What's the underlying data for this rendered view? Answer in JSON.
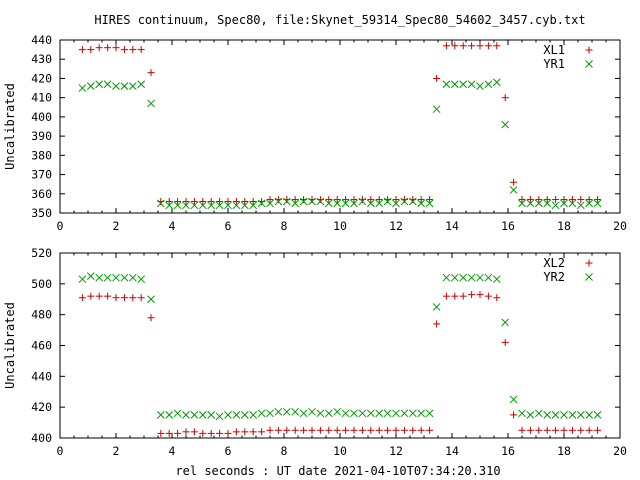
{
  "chart_data": [
    {
      "type": "scatter",
      "title": "HIRES continuum, Spec80, file:Skynet_59314_Spec80_54602_3457.cyb.txt",
      "xlabel": "",
      "ylabel": "Uncalibrated",
      "xlim": [
        0,
        20
      ],
      "ylim": [
        350,
        440
      ],
      "xticks": [
        "0",
        "2",
        "4",
        "6",
        "8",
        "10",
        "12",
        "14",
        "16",
        "18",
        "20"
      ],
      "yticks": [
        "350",
        "360",
        "370",
        "380",
        "390",
        "400",
        "410",
        "420",
        "430",
        "440"
      ],
      "grid": false,
      "legend": "top-right",
      "series": [
        {
          "name": "XL1",
          "marker": "plus",
          "color": "#cc0000",
          "points": [
            [
              0.8,
              435
            ],
            [
              1.1,
              435
            ],
            [
              1.4,
              436
            ],
            [
              1.7,
              436
            ],
            [
              2.0,
              436
            ],
            [
              2.3,
              435
            ],
            [
              2.6,
              435
            ],
            [
              2.9,
              435
            ],
            [
              3.25,
              423
            ],
            [
              3.6,
              356
            ],
            [
              3.9,
              356
            ],
            [
              4.2,
              356
            ],
            [
              4.5,
              356
            ],
            [
              4.8,
              356
            ],
            [
              5.1,
              356
            ],
            [
              5.4,
              356
            ],
            [
              5.7,
              356
            ],
            [
              6.0,
              356
            ],
            [
              6.3,
              356
            ],
            [
              6.6,
              356
            ],
            [
              6.9,
              356
            ],
            [
              7.2,
              356
            ],
            [
              7.5,
              357
            ],
            [
              7.8,
              357
            ],
            [
              8.1,
              357
            ],
            [
              8.4,
              357
            ],
            [
              8.7,
              357
            ],
            [
              9.0,
              357
            ],
            [
              9.3,
              357
            ],
            [
              9.6,
              357
            ],
            [
              9.9,
              357
            ],
            [
              10.2,
              357
            ],
            [
              10.5,
              357
            ],
            [
              10.8,
              357
            ],
            [
              11.1,
              357
            ],
            [
              11.4,
              357
            ],
            [
              11.7,
              357
            ],
            [
              12.0,
              357
            ],
            [
              12.3,
              357
            ],
            [
              12.6,
              357
            ],
            [
              12.9,
              357
            ],
            [
              13.2,
              357
            ],
            [
              13.45,
              420
            ],
            [
              13.8,
              437
            ],
            [
              14.1,
              437
            ],
            [
              14.4,
              437
            ],
            [
              14.7,
              437
            ],
            [
              15.0,
              437
            ],
            [
              15.3,
              437
            ],
            [
              15.6,
              437
            ],
            [
              15.9,
              410
            ],
            [
              16.2,
              366
            ],
            [
              16.5,
              357
            ],
            [
              16.8,
              357
            ],
            [
              17.1,
              357
            ],
            [
              17.4,
              357
            ],
            [
              17.7,
              357
            ],
            [
              18.0,
              357
            ],
            [
              18.3,
              357
            ],
            [
              18.6,
              357
            ],
            [
              18.9,
              357
            ],
            [
              19.2,
              357
            ]
          ]
        },
        {
          "name": "YR1",
          "marker": "cross",
          "color": "#009900",
          "points": [
            [
              0.8,
              415
            ],
            [
              1.1,
              416
            ],
            [
              1.4,
              417
            ],
            [
              1.7,
              417
            ],
            [
              2.0,
              416
            ],
            [
              2.3,
              416
            ],
            [
              2.6,
              416
            ],
            [
              2.9,
              417
            ],
            [
              3.25,
              407
            ],
            [
              3.6,
              355
            ],
            [
              3.9,
              354
            ],
            [
              4.2,
              354
            ],
            [
              4.5,
              354
            ],
            [
              4.8,
              354
            ],
            [
              5.1,
              354
            ],
            [
              5.4,
              354
            ],
            [
              5.7,
              354
            ],
            [
              6.0,
              354
            ],
            [
              6.3,
              354
            ],
            [
              6.6,
              354
            ],
            [
              6.9,
              354
            ],
            [
              7.2,
              355
            ],
            [
              7.5,
              355
            ],
            [
              7.8,
              356
            ],
            [
              8.1,
              356
            ],
            [
              8.4,
              355
            ],
            [
              8.7,
              356
            ],
            [
              9.0,
              356
            ],
            [
              9.3,
              356
            ],
            [
              9.6,
              355
            ],
            [
              9.9,
              355
            ],
            [
              10.2,
              355
            ],
            [
              10.5,
              355
            ],
            [
              10.8,
              356
            ],
            [
              11.1,
              355
            ],
            [
              11.4,
              355
            ],
            [
              11.7,
              356
            ],
            [
              12.0,
              355
            ],
            [
              12.3,
              356
            ],
            [
              12.6,
              356
            ],
            [
              12.9,
              355
            ],
            [
              13.2,
              355
            ],
            [
              13.45,
              404
            ],
            [
              13.8,
              417
            ],
            [
              14.1,
              417
            ],
            [
              14.4,
              417
            ],
            [
              14.7,
              417
            ],
            [
              15.0,
              416
            ],
            [
              15.3,
              417
            ],
            [
              15.6,
              418
            ],
            [
              15.9,
              396
            ],
            [
              16.2,
              362
            ],
            [
              16.5,
              355
            ],
            [
              16.8,
              355
            ],
            [
              17.1,
              355
            ],
            [
              17.4,
              355
            ],
            [
              17.7,
              354
            ],
            [
              18.0,
              355
            ],
            [
              18.3,
              355
            ],
            [
              18.6,
              354
            ],
            [
              18.9,
              355
            ],
            [
              19.2,
              355
            ]
          ]
        }
      ]
    },
    {
      "type": "scatter",
      "title": "",
      "xlabel": "rel seconds : UT date 2021-04-10T07:34:20.310",
      "ylabel": "Uncalibrated",
      "xlim": [
        0,
        20
      ],
      "ylim": [
        400,
        520
      ],
      "xticks": [
        "0",
        "2",
        "4",
        "6",
        "8",
        "10",
        "12",
        "14",
        "16",
        "18",
        "20"
      ],
      "yticks": [
        "400",
        "420",
        "440",
        "460",
        "480",
        "500",
        "520"
      ],
      "grid": false,
      "legend": "top-right",
      "series": [
        {
          "name": "XL2",
          "marker": "plus",
          "color": "#cc0000",
          "points": [
            [
              0.8,
              491
            ],
            [
              1.1,
              492
            ],
            [
              1.4,
              492
            ],
            [
              1.7,
              492
            ],
            [
              2.0,
              491
            ],
            [
              2.3,
              491
            ],
            [
              2.6,
              491
            ],
            [
              2.9,
              491
            ],
            [
              3.25,
              478
            ],
            [
              3.6,
              403
            ],
            [
              3.9,
              403
            ],
            [
              4.2,
              403
            ],
            [
              4.5,
              404
            ],
            [
              4.8,
              404
            ],
            [
              5.1,
              403
            ],
            [
              5.4,
              403
            ],
            [
              5.7,
              403
            ],
            [
              6.0,
              403
            ],
            [
              6.3,
              404
            ],
            [
              6.6,
              404
            ],
            [
              6.9,
              404
            ],
            [
              7.2,
              404
            ],
            [
              7.5,
              405
            ],
            [
              7.8,
              405
            ],
            [
              8.1,
              405
            ],
            [
              8.4,
              405
            ],
            [
              8.7,
              405
            ],
            [
              9.0,
              405
            ],
            [
              9.3,
              405
            ],
            [
              9.6,
              405
            ],
            [
              9.9,
              405
            ],
            [
              10.2,
              405
            ],
            [
              10.5,
              405
            ],
            [
              10.8,
              405
            ],
            [
              11.1,
              405
            ],
            [
              11.4,
              405
            ],
            [
              11.7,
              405
            ],
            [
              12.0,
              405
            ],
            [
              12.3,
              405
            ],
            [
              12.6,
              405
            ],
            [
              12.9,
              405
            ],
            [
              13.2,
              405
            ],
            [
              13.45,
              474
            ],
            [
              13.8,
              492
            ],
            [
              14.1,
              492
            ],
            [
              14.4,
              492
            ],
            [
              14.7,
              493
            ],
            [
              15.0,
              493
            ],
            [
              15.3,
              492
            ],
            [
              15.6,
              491
            ],
            [
              15.9,
              462
            ],
            [
              16.2,
              415
            ],
            [
              16.5,
              405
            ],
            [
              16.8,
              405
            ],
            [
              17.1,
              405
            ],
            [
              17.4,
              405
            ],
            [
              17.7,
              405
            ],
            [
              18.0,
              405
            ],
            [
              18.3,
              405
            ],
            [
              18.6,
              405
            ],
            [
              18.9,
              405
            ],
            [
              19.2,
              405
            ]
          ]
        },
        {
          "name": "YR2",
          "marker": "cross",
          "color": "#009900",
          "points": [
            [
              0.8,
              503
            ],
            [
              1.1,
              505
            ],
            [
              1.4,
              504
            ],
            [
              1.7,
              504
            ],
            [
              2.0,
              504
            ],
            [
              2.3,
              504
            ],
            [
              2.6,
              504
            ],
            [
              2.9,
              503
            ],
            [
              3.25,
              490
            ],
            [
              3.6,
              415
            ],
            [
              3.9,
              415
            ],
            [
              4.2,
              416
            ],
            [
              4.5,
              415
            ],
            [
              4.8,
              415
            ],
            [
              5.1,
              415
            ],
            [
              5.4,
              415
            ],
            [
              5.7,
              414
            ],
            [
              6.0,
              415
            ],
            [
              6.3,
              415
            ],
            [
              6.6,
              415
            ],
            [
              6.9,
              415
            ],
            [
              7.2,
              416
            ],
            [
              7.5,
              416
            ],
            [
              7.8,
              417
            ],
            [
              8.1,
              417
            ],
            [
              8.4,
              417
            ],
            [
              8.7,
              416
            ],
            [
              9.0,
              417
            ],
            [
              9.3,
              416
            ],
            [
              9.6,
              416
            ],
            [
              9.9,
              417
            ],
            [
              10.2,
              416
            ],
            [
              10.5,
              416
            ],
            [
              10.8,
              416
            ],
            [
              11.1,
              416
            ],
            [
              11.4,
              416
            ],
            [
              11.7,
              416
            ],
            [
              12.0,
              416
            ],
            [
              12.3,
              416
            ],
            [
              12.6,
              416
            ],
            [
              12.9,
              416
            ],
            [
              13.2,
              416
            ],
            [
              13.45,
              485
            ],
            [
              13.8,
              504
            ],
            [
              14.1,
              504
            ],
            [
              14.4,
              504
            ],
            [
              14.7,
              504
            ],
            [
              15.0,
              504
            ],
            [
              15.3,
              504
            ],
            [
              15.6,
              503
            ],
            [
              15.9,
              475
            ],
            [
              16.2,
              425
            ],
            [
              16.5,
              416
            ],
            [
              16.8,
              415
            ],
            [
              17.1,
              416
            ],
            [
              17.4,
              415
            ],
            [
              17.7,
              415
            ],
            [
              18.0,
              415
            ],
            [
              18.3,
              415
            ],
            [
              18.6,
              415
            ],
            [
              18.9,
              415
            ],
            [
              19.2,
              415
            ]
          ]
        }
      ]
    }
  ]
}
